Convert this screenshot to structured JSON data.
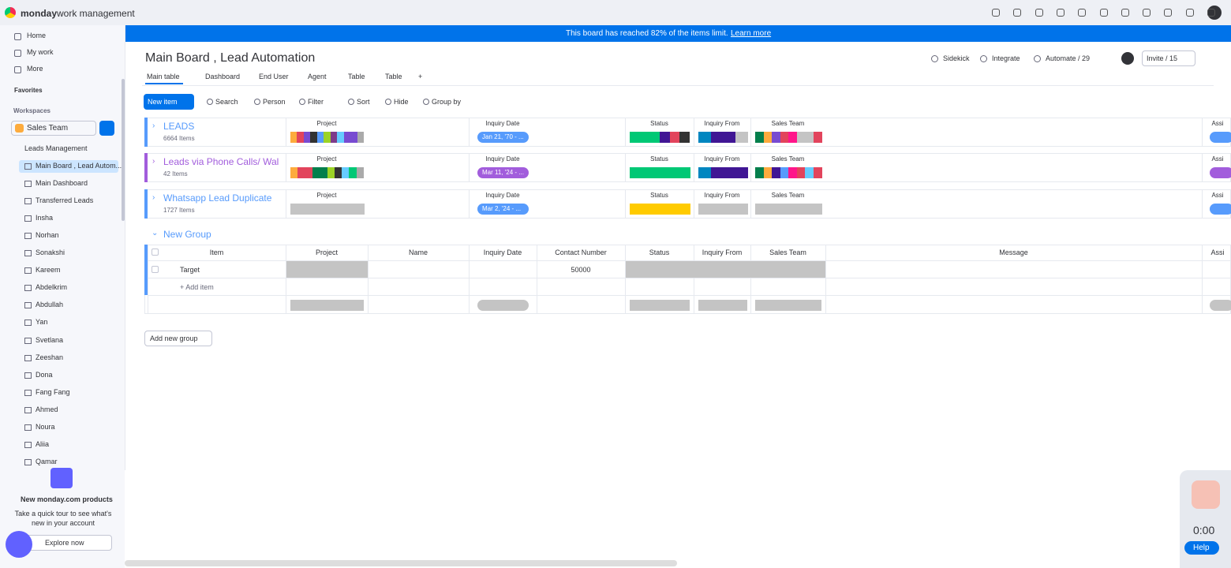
{
  "header": {
    "brand": "monday",
    "product": "work management"
  },
  "sidebar": {
    "nav": [
      "Home",
      "My work",
      "More"
    ],
    "favorites": "Favorites",
    "workspaces": "Workspaces",
    "workspace": "Sales Team",
    "folder": "Leads Management",
    "boards": [
      "Main Board , Lead Autom...",
      "Main Dashboard",
      "Transferred Leads",
      "Insha",
      "Norhan",
      "Sonakshi",
      "Kareem",
      "Abdelkrim",
      "Abdullah",
      "Yan",
      "Svetlana",
      "Zeeshan",
      "Dona",
      "Fang Fang",
      "Ahmed",
      "Noura",
      "Aliia",
      "Qamar"
    ],
    "promo": {
      "title": "New monday.com products",
      "text": "Take a quick tour to see what's new in your account",
      "button": "Explore now"
    }
  },
  "banner": {
    "text": "This board has reached 82% of the items limit.",
    "link": "Learn more"
  },
  "board": {
    "title": "Main Board , Lead Automation",
    "tabs": [
      "Main table",
      "Dashboard",
      "End User",
      "Agent",
      "Table",
      "Table",
      "+"
    ],
    "actions": [
      "Sidekick",
      "Integrate",
      "Automate / 29"
    ],
    "invite": "Invite / 15",
    "toolbar": {
      "new_item": "New item",
      "tools": [
        "Search",
        "Person",
        "Filter",
        "Sort",
        "Hide",
        "Group by"
      ]
    },
    "collapsed_groups": [
      {
        "name": "LEADS",
        "count": "6664 Items",
        "date": "Jan 21, '70 - ..."
      },
      {
        "name": "Leads via Phone Calls/ Wal",
        "count": "42 Items",
        "date": "Mar 11, '24 - ..."
      },
      {
        "name": "Whatsapp Lead Duplicate",
        "count": "1727 Items",
        "date": "Mar 2, '24 - ..."
      }
    ],
    "summary_columns": [
      "Project",
      "Inquiry Date",
      "Status",
      "Inquiry From",
      "Sales Team",
      "Assi"
    ],
    "new_group": {
      "name": "New Group",
      "columns": [
        "Item",
        "Project",
        "Name",
        "Inquiry Date",
        "Contact Number",
        "Status",
        "Inquiry From",
        "Sales Team",
        "Message",
        "Assi"
      ],
      "row": {
        "item": "Target",
        "contact_number": "50000"
      },
      "add_item": "+ Add item"
    },
    "add_group": "Add new group"
  },
  "recorder": {
    "time": "0:00",
    "help": "Help"
  }
}
